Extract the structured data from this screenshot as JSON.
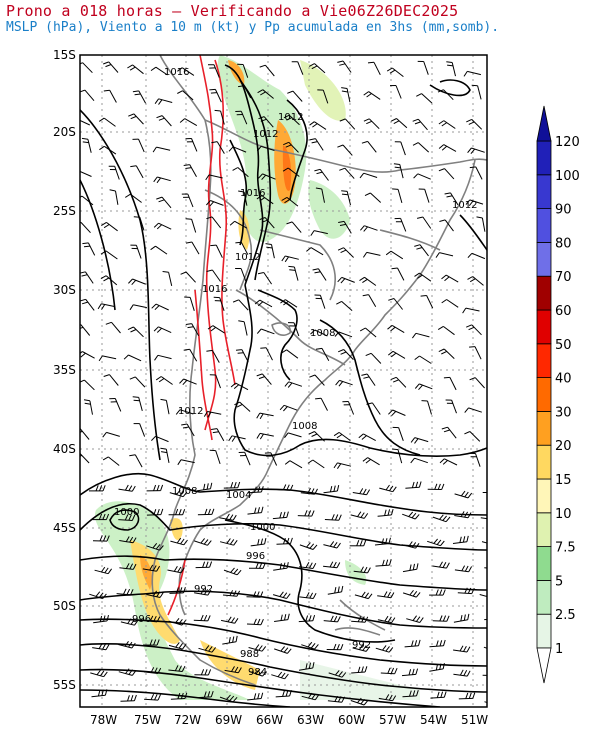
{
  "title": "Prono a 018 horas – Verificando a Vie06Z26DEC2025",
  "subtitle": "MSLP (hPa), Viento a 10 m (kt) y Pp acumulada en 3hs (mm,somb).",
  "colors": {
    "title": "#c0001e",
    "subtitle": "#1a7fc8",
    "isobar": "#000000",
    "high_isobar": "#e8202a",
    "coastline": "#808080",
    "grid": "#999999"
  },
  "map": {
    "lon_range": [
      -80,
      -50
    ],
    "lat_range": [
      -56,
      -15
    ],
    "lat_labels": [
      "15S",
      "20S",
      "25S",
      "30S",
      "35S",
      "40S",
      "45S",
      "50S",
      "55S"
    ],
    "lon_labels": [
      "78W",
      "75W",
      "72W",
      "69W",
      "66W",
      "63W",
      "60W",
      "57W",
      "54W",
      "51W"
    ],
    "isobar_labels": [
      "1016",
      "1012",
      "1012",
      "1016",
      "1012",
      "1016",
      "1012",
      "1008",
      "1012",
      "1008",
      "1008",
      "1004",
      "1000",
      "1000",
      "996",
      "992",
      "996",
      "988",
      "984",
      "992"
    ]
  },
  "colorbar": {
    "labels": [
      "1",
      "2.5",
      "5",
      "7.5",
      "10",
      "15",
      "20",
      "30",
      "40",
      "50",
      "60",
      "70",
      "80",
      "90",
      "100",
      "120"
    ],
    "colors": [
      "#e6f5e6",
      "#bfecbf",
      "#8fdb8f",
      "#dff2b0",
      "#fff6b8",
      "#ffd860",
      "#ffa020",
      "#ff6a00",
      "#ff2800",
      "#e00000",
      "#a00000",
      "#6f6fe8",
      "#5050e0",
      "#3838d0",
      "#2020b8",
      "#101098"
    ],
    "top_arrow_color": "#101098"
  }
}
